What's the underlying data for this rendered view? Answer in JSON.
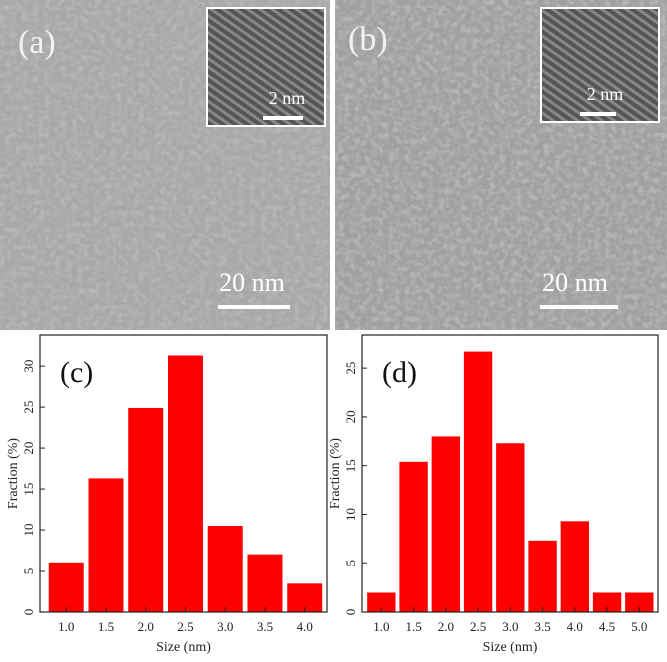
{
  "images": [
    {
      "label": "(a)",
      "scale_bar": "20 nm",
      "inset_scale_bar": "2 nm"
    },
    {
      "label": "(b)",
      "scale_bar": "20 nm",
      "inset_scale_bar": "2 nm"
    }
  ],
  "chart_data": [
    {
      "type": "bar",
      "annotation": "(c)",
      "xlabel": "Size (nm)",
      "ylabel": "Fraction (%)",
      "color": "#ff0000",
      "x": [
        1.0,
        1.5,
        2.0,
        2.5,
        3.0,
        3.5,
        4.0
      ],
      "values": [
        6.0,
        16.3,
        24.9,
        31.3,
        10.5,
        7.0,
        3.5
      ],
      "xlim": [
        0.67,
        4.28
      ],
      "ylim": [
        0,
        33.8
      ],
      "xticks": [
        {
          "value": 1.0,
          "label": "1.0"
        },
        {
          "value": 1.5,
          "label": "1.5"
        },
        {
          "value": 2.0,
          "label": "2.0"
        },
        {
          "value": 2.5,
          "label": "2.5"
        },
        {
          "value": 3.0,
          "label": "3.0"
        },
        {
          "value": 3.5,
          "label": "3.5"
        },
        {
          "value": 4.0,
          "label": "4.0"
        }
      ],
      "yticks": [
        0,
        5,
        10,
        15,
        20,
        25,
        30
      ]
    },
    {
      "type": "bar",
      "annotation": "(d)",
      "xlabel": "Size (nm)",
      "ylabel": "Fraction (%)",
      "color": "#ff0000",
      "x": [
        1.0,
        1.5,
        2.0,
        2.5,
        3.0,
        3.5,
        4.0,
        4.5,
        5.0
      ],
      "values": [
        2.0,
        15.4,
        18.0,
        26.7,
        17.3,
        7.3,
        9.3,
        2.0,
        2.0
      ],
      "xlim": [
        0.7,
        5.29
      ],
      "ylim": [
        0,
        28.4
      ],
      "xticks": [
        {
          "value": 1.0,
          "label": "1.0"
        },
        {
          "value": 1.5,
          "label": "1.5"
        },
        {
          "value": 2.0,
          "label": "2.0"
        },
        {
          "value": 2.5,
          "label": "2.5"
        },
        {
          "value": 3.0,
          "label": "3.0"
        },
        {
          "value": 3.5,
          "label": "3.5"
        },
        {
          "value": 4.0,
          "label": "4.0"
        },
        {
          "value": 4.5,
          "label": "4.5"
        },
        {
          "value": 5.0,
          "label": "5.0"
        }
      ],
      "yticks": [
        0,
        5,
        10,
        15,
        20,
        25
      ]
    }
  ]
}
